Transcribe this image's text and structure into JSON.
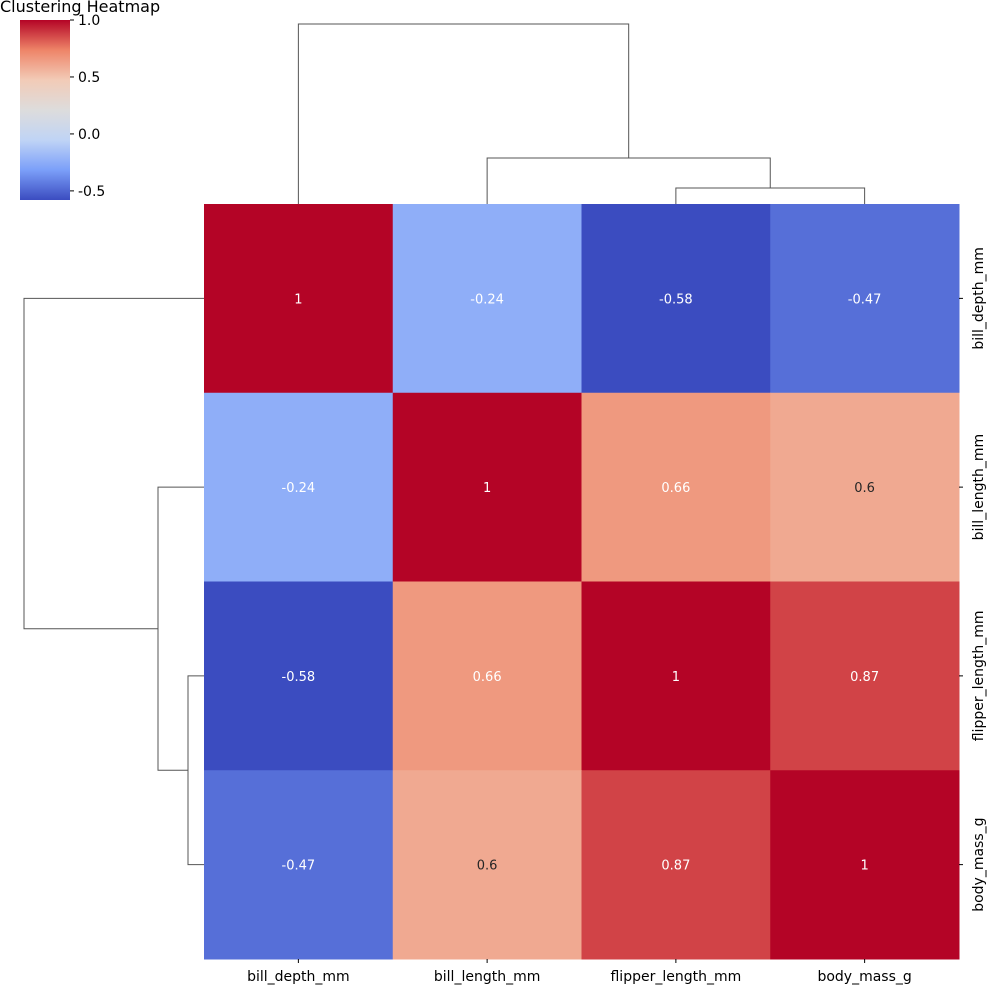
{
  "chart_data": {
    "type": "heatmap",
    "title": "Clustering Heatmap",
    "rows": [
      "bill_depth_mm",
      "bill_length_mm",
      "flipper_length_mm",
      "body_mass_g"
    ],
    "columns": [
      "bill_depth_mm",
      "bill_length_mm",
      "flipper_length_mm",
      "body_mass_g"
    ],
    "values": [
      [
        1,
        -0.24,
        -0.58,
        -0.47
      ],
      [
        -0.24,
        1,
        0.66,
        0.6
      ],
      [
        -0.58,
        0.66,
        1,
        0.87
      ],
      [
        -0.47,
        0.6,
        0.87,
        1
      ]
    ],
    "cell_labels": [
      [
        "1",
        "-0.24",
        "-0.58",
        "-0.47"
      ],
      [
        "-0.24",
        "1",
        "0.66",
        "0.6"
      ],
      [
        "-0.58",
        "0.66",
        "1",
        "0.87"
      ],
      [
        "-0.47",
        "0.6",
        "0.87",
        "1"
      ]
    ],
    "colormap": "coolwarm",
    "colormap_stops": [
      "#3b4cc0",
      "#7b9ff9",
      "#c0d4f5",
      "#dddcdc",
      "#f2cbb7",
      "#ee8468",
      "#b40426"
    ],
    "vmin": -0.58,
    "vmax": 1.0,
    "colorbar": {
      "ticks": [
        1.0,
        0.5,
        0.0,
        -0.5
      ],
      "tick_labels": [
        "1.0",
        "0.5",
        "0.0",
        "-0.5"
      ],
      "placement": "top-left"
    },
    "dendrogram": {
      "method": "hierarchical",
      "merges": [
        [
          "flipper_length_mm",
          "body_mass_g"
        ],
        [
          "bill_length_mm",
          "flipper_length_mm+body_mass_g"
        ],
        [
          "bill_depth_mm",
          "bill_length_mm+flipper_length_mm+body_mass_g"
        ]
      ],
      "positions": [
        "top",
        "left"
      ]
    }
  }
}
